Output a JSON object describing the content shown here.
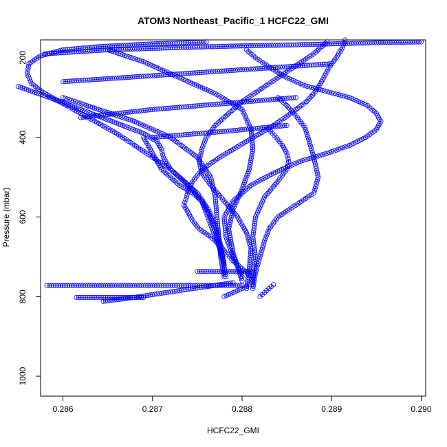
{
  "chart_data": {
    "type": "scatter",
    "title": "ATOM3 Northeast_Pacific_1 HCFC22_GMI",
    "xlabel": "HCFC22_GMI",
    "ylabel": "Pressure (mbar)",
    "xlim": [
      0.28575,
      0.29005
    ],
    "ylim": [
      1050,
      155
    ],
    "y_reversed": true,
    "x_ticks": [
      0.286,
      0.287,
      0.288,
      0.289,
      0.29
    ],
    "x_tick_labels": [
      "0.286",
      "0.287",
      "0.288",
      "0.289",
      "0.290"
    ],
    "y_ticks": [
      200,
      400,
      600,
      800,
      1000
    ],
    "y_tick_labels": [
      "200",
      "400",
      "600",
      "800",
      "1000"
    ],
    "marker": "open-circle",
    "connect_points": true,
    "color": "#0000ff",
    "grid": false,
    "series": [
      {
        "x": [
          0.28915,
          0.28912,
          0.28905,
          0.28897,
          0.2889,
          0.28882,
          0.28872,
          0.2886,
          0.28848,
          0.28835,
          0.2882,
          0.28805,
          0.2879,
          0.28775,
          0.28762,
          0.28752,
          0.28745,
          0.2874,
          0.28738,
          0.28735,
          0.2874,
          0.28745,
          0.28752,
          0.28765,
          0.28775,
          0.28782,
          0.2879,
          0.288,
          0.2881,
          0.28812
        ],
        "y": [
          155,
          175,
          200,
          225,
          255,
          285,
          310,
          330,
          350,
          370,
          390,
          410,
          430,
          450,
          470,
          490,
          510,
          530,
          550,
          570,
          590,
          610,
          630,
          650,
          670,
          690,
          710,
          730,
          750,
          770
        ]
      },
      {
        "x": [
          0.28895,
          0.2888,
          0.2886,
          0.2884,
          0.2882,
          0.288,
          0.28785,
          0.2877,
          0.2876,
          0.28755,
          0.28752,
          0.28755,
          0.28765,
          0.2878,
          0.28795,
          0.28805,
          0.2881,
          0.28808,
          0.28805
        ],
        "y": [
          160,
          190,
          220,
          250,
          280,
          310,
          340,
          370,
          400,
          430,
          460,
          490,
          520,
          560,
          600,
          640,
          680,
          730,
          780
        ]
      },
      {
        "x": [
          0.2876,
          0.287,
          0.2864,
          0.286,
          0.28575,
          0.28562,
          0.2856,
          0.28565,
          0.2858,
          0.286,
          0.2862,
          0.2864,
          0.2866,
          0.2868,
          0.287,
          0.2872,
          0.2874,
          0.28755,
          0.28765,
          0.28772,
          0.28778,
          0.28782
        ],
        "y": [
          160,
          165,
          172,
          180,
          195,
          215,
          240,
          265,
          290,
          315,
          340,
          365,
          390,
          420,
          450,
          480,
          520,
          560,
          600,
          650,
          700,
          750
        ]
      },
      {
        "x": [
          0.2855,
          0.28585,
          0.2862,
          0.28655,
          0.2869,
          0.28705,
          0.2871,
          0.28712,
          0.2872,
          0.28735,
          0.2875,
          0.28762,
          0.2877,
          0.28776,
          0.2878
        ],
        "y": [
          272,
          300,
          330,
          360,
          390,
          410,
          430,
          450,
          480,
          510,
          540,
          580,
          620,
          670,
          720
        ]
      },
      {
        "x": [
          0.28805,
          0.28815,
          0.28825,
          0.28835,
          0.2885,
          0.2887,
          0.28895,
          0.2892,
          0.2894,
          0.2895,
          0.28955,
          0.2895,
          0.28938,
          0.2892,
          0.28895,
          0.28865,
          0.28835,
          0.2881,
          0.2879,
          0.2878,
          0.28782,
          0.2879,
          0.288
        ],
        "y": [
          180,
          200,
          215,
          230,
          250,
          270,
          285,
          300,
          320,
          340,
          360,
          380,
          400,
          420,
          440,
          460,
          490,
          520,
          560,
          600,
          650,
          700,
          750
        ]
      },
      {
        "x": [
          0.2865,
          0.2869,
          0.2873,
          0.2877,
          0.288,
          0.2881,
          0.28812,
          0.28808,
          0.288,
          0.2879,
          0.28785,
          0.2879,
          0.288
        ],
        "y": [
          180,
          210,
          250,
          290,
          330,
          380,
          430,
          480,
          530,
          580,
          630,
          690,
          760
        ]
      },
      {
        "x": [
          0.2884,
          0.2885,
          0.2886,
          0.2887,
          0.28875,
          0.2888,
          0.28885,
          0.2888,
          0.2886,
          0.2884,
          0.2883,
          0.28825,
          0.2882,
          0.28815,
          0.28812
        ],
        "y": [
          300,
          320,
          345,
          375,
          410,
          450,
          500,
          540,
          570,
          600,
          630,
          660,
          700,
          740,
          780
        ]
      },
      {
        "x": [
          0.2883,
          0.28838,
          0.28845,
          0.2885,
          0.28852,
          0.2885,
          0.2884,
          0.28825,
          0.28815,
          0.28812,
          0.28815,
          0.28812
        ],
        "y": [
          380,
          400,
          420,
          440,
          460,
          480,
          510,
          550,
          600,
          650,
          700,
          760
        ]
      },
      {
        "x": [
          0.2869,
          0.28695,
          0.287,
          0.28705,
          0.2871,
          0.2872,
          0.2873,
          0.28745,
          0.28755,
          0.2876,
          0.28765,
          0.2877,
          0.28775,
          0.2878
        ],
        "y": [
          400,
          420,
          440,
          460,
          480,
          500,
          520,
          540,
          560,
          590,
          620,
          650,
          680,
          720
        ]
      },
      {
        "x": [
          0.286,
          0.2864,
          0.2868,
          0.2872,
          0.2875,
          0.28765,
          0.2877,
          0.28772,
          0.28774,
          0.28776,
          0.2878
        ],
        "y": [
          300,
          330,
          360,
          400,
          450,
          500,
          550,
          600,
          650,
          700,
          750
        ]
      },
      {
        "x": [
          0.2858,
          0.2865,
          0.2872,
          0.288,
          0.2885,
          0.289,
          0.2895,
          0.29
        ],
        "y": [
          190,
          180,
          175,
          170,
          168,
          165,
          162,
          160
        ]
      },
      {
        "x": [
          0.286,
          0.287,
          0.288,
          0.289
        ],
        "y": [
          260,
          245,
          230,
          215
        ]
      },
      {
        "x": [
          0.2862,
          0.287,
          0.2878,
          0.2886
        ],
        "y": [
          350,
          330,
          315,
          300
        ]
      },
      {
        "x": [
          0.287,
          0.2878,
          0.2885
        ],
        "y": [
          400,
          385,
          370
        ]
      },
      {
        "x": [
          0.28582,
          0.2862,
          0.2866,
          0.287,
          0.2875,
          0.2878,
          0.288
        ],
        "y": [
          772,
          772,
          772,
          772,
          772,
          772,
          772
        ]
      },
      {
        "x": [
          0.28615,
          0.2864,
          0.28665,
          0.2869
        ],
        "y": [
          802,
          802,
          802,
          802
        ]
      },
      {
        "x": [
          0.28645,
          0.2867,
          0.287,
          0.2873,
          0.2876,
          0.2879
        ],
        "y": [
          812,
          805,
          795,
          785,
          775,
          765
        ]
      },
      {
        "x": [
          0.2875,
          0.2878,
          0.288,
          0.28812
        ],
        "y": [
          737,
          737,
          737,
          737
        ]
      },
      {
        "x": [
          0.2878,
          0.2879,
          0.288,
          0.28808
        ],
        "y": [
          800,
          790,
          780,
          770
        ]
      },
      {
        "x": [
          0.2882,
          0.28825,
          0.2883,
          0.28835
        ],
        "y": [
          800,
          790,
          780,
          770
        ]
      }
    ]
  }
}
